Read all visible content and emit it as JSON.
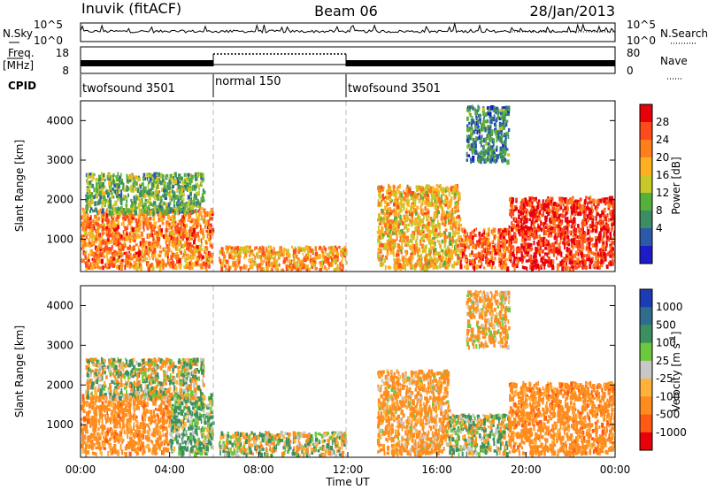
{
  "header": {
    "station": "Inuvik (fitACF)",
    "beam": "Beam 06",
    "date": "28/Jan/2013"
  },
  "summary": {
    "nsky_label": "N.Sky",
    "nsearch_label": "N.Search",
    "freq_label_1": "Freq.",
    "freq_label_2": "[MHz]",
    "nave_label": "Nave",
    "cpid_label": "CPID",
    "noise_ticks": [
      "10^5",
      "10^0"
    ],
    "freq_ticks": [
      "18",
      "8"
    ],
    "nave_ticks": [
      "80",
      "0"
    ]
  },
  "cpid_segments": [
    {
      "label": "twofsound 3501",
      "start_hour": 0,
      "end_hour": 6
    },
    {
      "label": "normal 150",
      "start_hour": 6,
      "end_hour": 12
    },
    {
      "label": "twofsound 3501",
      "start_hour": 12,
      "end_hour": 24
    }
  ],
  "power_colorbar": {
    "title": "Power [dB]",
    "ticks": [
      "28",
      "24",
      "20",
      "16",
      "12",
      "8",
      "4"
    ],
    "colors": [
      "#e8000b",
      "#ff4a1a",
      "#ff7e1e",
      "#ffb020",
      "#c8c828",
      "#55b03c",
      "#3c8c64",
      "#2c5aa8",
      "#1c1cc8"
    ]
  },
  "velocity_colorbar": {
    "title": "Velocity [m s",
    "unit_exp": "-1",
    "ticks": [
      "1000",
      "500",
      "100",
      "25",
      "-25",
      "-100",
      "-500",
      "-1000"
    ],
    "colors": [
      "#1c3cb4",
      "#2f6d8e",
      "#3c9060",
      "#6cc83c",
      "#c8c8c8",
      "#ffb13c",
      "#ff8c1e",
      "#ff5a14",
      "#e8000b"
    ]
  },
  "chart_data": [
    {
      "type": "heatmap",
      "name_hint": "power",
      "ylabel": "Slant Range [km]",
      "ylim": [
        180,
        4500
      ],
      "yticks": [
        "1000",
        "2000",
        "3000",
        "4000"
      ],
      "xlim": [
        0,
        24
      ],
      "xticks": [
        "00:00",
        "04:00",
        "08:00",
        "12:00",
        "16:00",
        "20:00",
        "00:00"
      ],
      "mode_boundaries_hours": [
        6,
        12
      ],
      "echo_regions": [
        {
          "t0": 0.0,
          "t1": 5.9,
          "r0": 300,
          "r1": 1800,
          "value_db": 22
        },
        {
          "t0": 0.2,
          "t1": 5.5,
          "r0": 1700,
          "r1": 2700,
          "value_db": 10
        },
        {
          "t0": 6.2,
          "t1": 11.9,
          "r0": 250,
          "r1": 850,
          "value_db": 20
        },
        {
          "t0": 13.3,
          "t1": 17.0,
          "r0": 300,
          "r1": 2400,
          "value_db": 18
        },
        {
          "t0": 17.0,
          "t1": 19.2,
          "r0": 300,
          "r1": 1300,
          "value_db": 24
        },
        {
          "t0": 19.2,
          "t1": 24.0,
          "r0": 300,
          "r1": 2100,
          "value_db": 28
        },
        {
          "t0": 17.3,
          "t1": 19.2,
          "r0": 3000,
          "r1": 4400,
          "value_db": 6
        }
      ]
    },
    {
      "type": "heatmap",
      "name_hint": "velocity",
      "ylabel": "Slant Range [km]",
      "xlabel": "Time UT",
      "ylim": [
        180,
        4500
      ],
      "yticks": [
        "1000",
        "2000",
        "3000",
        "4000"
      ],
      "xlim": [
        0,
        24
      ],
      "xticks": [
        "00:00",
        "04:00",
        "08:00",
        "12:00",
        "16:00",
        "20:00",
        "00:00"
      ],
      "mode_boundaries_hours": [
        6,
        12
      ],
      "echo_regions": [
        {
          "t0": 0.0,
          "t1": 4.0,
          "r0": 300,
          "r1": 1800,
          "value_ms": -300
        },
        {
          "t0": 4.0,
          "t1": 5.9,
          "r0": 300,
          "r1": 1800,
          "value_ms": 150
        },
        {
          "t0": 0.2,
          "t1": 5.5,
          "r0": 1700,
          "r1": 2700,
          "value_ms": 0
        },
        {
          "t0": 6.2,
          "t1": 11.9,
          "r0": 250,
          "r1": 850,
          "value_ms": 0
        },
        {
          "t0": 13.3,
          "t1": 16.5,
          "r0": 300,
          "r1": 2400,
          "value_ms": -200
        },
        {
          "t0": 16.5,
          "t1": 19.2,
          "r0": 300,
          "r1": 1300,
          "value_ms": 50
        },
        {
          "t0": 19.2,
          "t1": 24.0,
          "r0": 300,
          "r1": 2100,
          "value_ms": -300
        },
        {
          "t0": 17.3,
          "t1": 19.2,
          "r0": 3000,
          "r1": 4400,
          "value_ms": -150
        }
      ]
    }
  ]
}
